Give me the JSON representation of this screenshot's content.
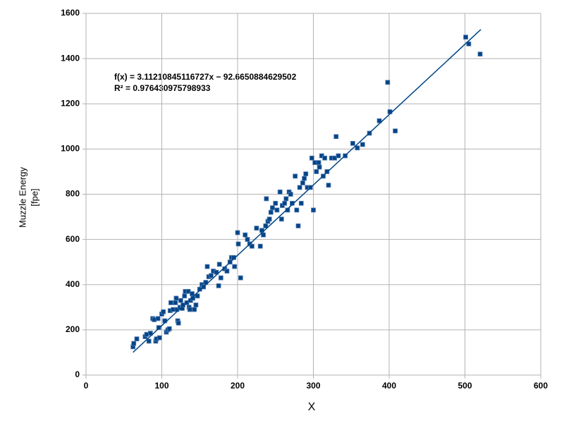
{
  "chart_data": {
    "type": "scatter",
    "x_label": "X",
    "y_label": [
      "Muzzle Energy",
      "[fpe]"
    ],
    "annotation": [
      "f(x) = 3.11210845116727x − 92.6650884629502",
      "R² = 0.976430975798933"
    ],
    "xlim": [
      0,
      600
    ],
    "xticks": [
      0,
      100,
      200,
      300,
      400,
      500,
      600
    ],
    "ylim": [
      0,
      1600
    ],
    "yticks": [
      0,
      200,
      400,
      600,
      800,
      1000,
      1200,
      1400,
      1600
    ],
    "grid": true,
    "color": "#004586",
    "trendline": {
      "slope": 3.11210845116727,
      "intercept": -92.6650884629502,
      "x": [
        62,
        521
      ]
    },
    "x": [
      62,
      63,
      67,
      78,
      80,
      83,
      85,
      88,
      90,
      92,
      93,
      95,
      96,
      97,
      100,
      102,
      104,
      106,
      108,
      110,
      111,
      112,
      115,
      118,
      119,
      120,
      121,
      122,
      124,
      125,
      127,
      128,
      130,
      131,
      133,
      135,
      136,
      137,
      138,
      140,
      141,
      143,
      145,
      147,
      150,
      153,
      155,
      158,
      160,
      162,
      165,
      168,
      172,
      175,
      176,
      178,
      183,
      186,
      190,
      192,
      195,
      196,
      200,
      201,
      204,
      210,
      213,
      216,
      219,
      225,
      230,
      232,
      234,
      237,
      238,
      240,
      242,
      244,
      246,
      250,
      252,
      256,
      258,
      259,
      262,
      264,
      266,
      268,
      270,
      272,
      276,
      278,
      280,
      282,
      284,
      286,
      288,
      290,
      292,
      296,
      298,
      300,
      302,
      304,
      307,
      308,
      311,
      313,
      315,
      318,
      320,
      324,
      328,
      330,
      333,
      342,
      352,
      358,
      365,
      374,
      387,
      401,
      398,
      408,
      501,
      505,
      520
    ],
    "values": [
      125,
      140,
      160,
      170,
      180,
      150,
      185,
      250,
      245,
      150,
      160,
      250,
      210,
      165,
      270,
      280,
      240,
      190,
      200,
      205,
      285,
      320,
      290,
      320,
      340,
      290,
      240,
      230,
      300,
      330,
      295,
      310,
      350,
      370,
      320,
      370,
      300,
      290,
      330,
      360,
      340,
      290,
      310,
      350,
      380,
      400,
      390,
      410,
      480,
      435,
      440,
      460,
      455,
      395,
      490,
      430,
      470,
      460,
      500,
      520,
      520,
      480,
      630,
      580,
      430,
      620,
      600,
      580,
      570,
      650,
      570,
      640,
      620,
      660,
      780,
      680,
      690,
      720,
      740,
      760,
      730,
      810,
      690,
      750,
      760,
      780,
      730,
      810,
      800,
      760,
      880,
      730,
      660,
      830,
      760,
      850,
      870,
      890,
      830,
      830,
      960,
      730,
      940,
      900,
      940,
      920,
      970,
      880,
      960,
      900,
      840,
      960,
      960,
      1055,
      970,
      970,
      1025,
      1005,
      1020,
      1070,
      1125,
      1165,
      1295,
      1080,
      1495,
      1465,
      1420
    ]
  }
}
